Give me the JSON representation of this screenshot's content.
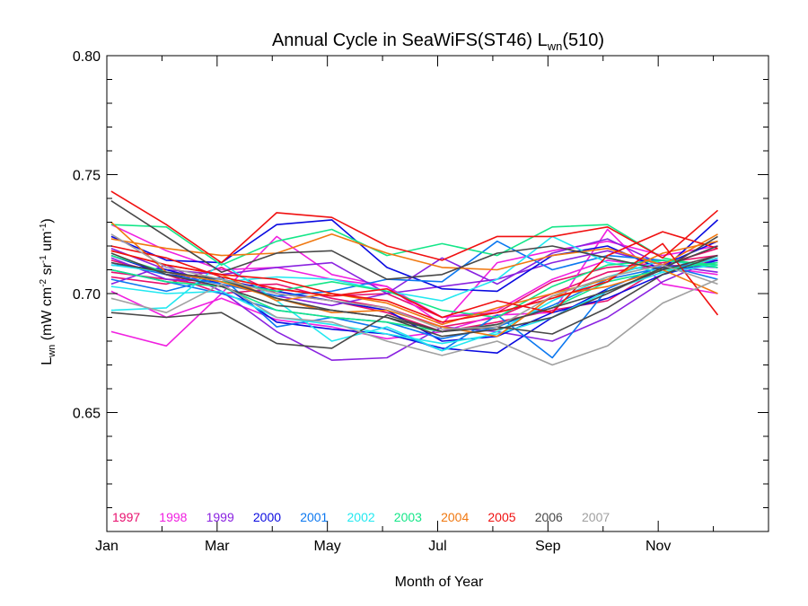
{
  "chart_data": {
    "type": "line",
    "title": "Annual Cycle in SeaWiFS(ST46) L",
    "title_sub": "wn",
    "title_tail": "(510)",
    "ylabel_main": "L",
    "ylabel_sub": "wn",
    "ylabel_unit_a": " (mW cm",
    "ylabel_unit_a_sup": "-2",
    "ylabel_unit_b": " sr",
    "ylabel_unit_b_sup": "-1",
    "ylabel_unit_c": " um",
    "ylabel_unit_c_sup": "-1",
    "ylabel_unit_d": ")",
    "xlabel": "Month of Year",
    "xlim": [
      1,
      13
    ],
    "ylim": [
      0.6,
      0.8
    ],
    "y_major_ticks": [
      0.65,
      0.7,
      0.75,
      0.8
    ],
    "y_tick_labels": [
      "0.65",
      "0.70",
      "0.75",
      "0.80"
    ],
    "x_tick_positions": [
      1,
      3,
      5,
      7,
      9,
      11
    ],
    "x_tick_labels": [
      "Jan",
      "Mar",
      "May",
      "Jul",
      "Sep",
      "Nov"
    ],
    "x": [
      1.08,
      2.08,
      3.08,
      4.08,
      5.08,
      6.08,
      7.08,
      8.08,
      9.08,
      10.08,
      11.08,
      12.08
    ],
    "legend_position": "bottom-left",
    "series": [
      {
        "name": "1997",
        "color": "#e8106e",
        "lines": [
          [
            0.707,
            0.704,
            0.711,
            0.7,
            0.697,
            0.692,
            0.684,
            0.688,
            0.693,
            0.697,
            0.711,
            0.714
          ],
          [
            0.714,
            0.708,
            0.7,
            0.702,
            0.699,
            0.7,
            0.69,
            0.692,
            0.705,
            0.711,
            0.713,
            0.716
          ],
          [
            0.709,
            0.706,
            0.703,
            0.704,
            0.698,
            0.694,
            0.686,
            0.69,
            0.7,
            0.709,
            0.712,
            0.719
          ]
        ]
      },
      {
        "name": "1998",
        "color": "#f020e0",
        "lines": [
          [
            0.684,
            0.678,
            0.7,
            0.724,
            0.708,
            0.703,
            0.69,
            0.693,
            0.706,
            0.714,
            0.711,
            0.708
          ],
          [
            0.701,
            0.69,
            0.698,
            0.689,
            0.686,
            0.681,
            0.684,
            0.691,
            0.692,
            0.727,
            0.704,
            0.7
          ],
          [
            0.729,
            0.718,
            0.71,
            0.711,
            0.706,
            0.703,
            0.687,
            0.713,
            0.718,
            0.722,
            0.716,
            0.72
          ]
        ]
      },
      {
        "name": "1999",
        "color": "#8a22e0",
        "lines": [
          [
            0.719,
            0.71,
            0.708,
            0.711,
            0.713,
            0.7,
            0.715,
            0.704,
            0.717,
            0.723,
            0.712,
            0.711
          ],
          [
            0.704,
            0.712,
            0.701,
            0.684,
            0.672,
            0.673,
            0.686,
            0.684,
            0.68,
            0.69,
            0.705,
            0.715
          ],
          [
            0.715,
            0.706,
            0.705,
            0.699,
            0.695,
            0.7,
            0.703,
            0.706,
            0.713,
            0.718,
            0.712,
            0.709
          ]
        ]
      },
      {
        "name": "2000",
        "color": "#0a0ae0",
        "lines": [
          [
            0.724,
            0.714,
            0.713,
            0.729,
            0.731,
            0.711,
            0.702,
            0.701,
            0.716,
            0.72,
            0.71,
            0.731
          ],
          [
            0.712,
            0.71,
            0.704,
            0.688,
            0.685,
            0.683,
            0.677,
            0.675,
            0.69,
            0.702,
            0.712,
            0.722
          ],
          [
            0.716,
            0.708,
            0.706,
            0.701,
            0.697,
            0.693,
            0.68,
            0.682,
            0.692,
            0.698,
            0.708,
            0.714
          ]
        ]
      },
      {
        "name": "2001",
        "color": "#0c78f0",
        "lines": [
          [
            0.706,
            0.701,
            0.707,
            0.686,
            0.69,
            0.685,
            0.676,
            0.691,
            0.673,
            0.702,
            0.712,
            0.706
          ],
          [
            0.713,
            0.708,
            0.704,
            0.699,
            0.701,
            0.706,
            0.705,
            0.722,
            0.71,
            0.716,
            0.714,
            0.711
          ],
          [
            0.71,
            0.705,
            0.7,
            0.693,
            0.69,
            0.688,
            0.681,
            0.686,
            0.695,
            0.706,
            0.711,
            0.713
          ]
        ]
      },
      {
        "name": "2002",
        "color": "#22e8f0",
        "lines": [
          [
            0.693,
            0.694,
            0.713,
            0.697,
            0.68,
            0.686,
            0.676,
            0.684,
            0.697,
            0.707,
            0.714,
            0.711
          ],
          [
            0.712,
            0.709,
            0.705,
            0.707,
            0.706,
            0.701,
            0.697,
            0.706,
            0.724,
            0.713,
            0.709,
            0.715
          ],
          [
            0.703,
            0.7,
            0.701,
            0.69,
            0.687,
            0.683,
            0.679,
            0.683,
            0.69,
            0.701,
            0.709,
            0.712
          ]
        ]
      },
      {
        "name": "2003",
        "color": "#14e688",
        "lines": [
          [
            0.729,
            0.728,
            0.712,
            0.722,
            0.727,
            0.716,
            0.721,
            0.716,
            0.728,
            0.729,
            0.715,
            0.711
          ],
          [
            0.716,
            0.709,
            0.705,
            0.701,
            0.705,
            0.701,
            0.693,
            0.69,
            0.703,
            0.712,
            0.714,
            0.712
          ],
          [
            0.71,
            0.705,
            0.703,
            0.693,
            0.69,
            0.688,
            0.684,
            0.687,
            0.694,
            0.705,
            0.71,
            0.713
          ]
        ]
      },
      {
        "name": "2004",
        "color": "#f07810",
        "lines": [
          [
            0.723,
            0.719,
            0.716,
            0.717,
            0.725,
            0.717,
            0.711,
            0.71,
            0.716,
            0.719,
            0.712,
            0.725
          ],
          [
            0.718,
            0.712,
            0.708,
            0.697,
            0.7,
            0.696,
            0.687,
            0.694,
            0.7,
            0.706,
            0.717,
            0.722
          ],
          [
            0.73,
            0.709,
            0.705,
            0.698,
            0.692,
            0.693,
            0.686,
            0.682,
            0.699,
            0.703,
            0.71,
            0.7
          ]
        ]
      },
      {
        "name": "2005",
        "color": "#f01010",
        "lines": [
          [
            0.743,
            0.729,
            0.713,
            0.734,
            0.732,
            0.72,
            0.714,
            0.724,
            0.724,
            0.728,
            0.715,
            0.735
          ],
          [
            0.72,
            0.715,
            0.707,
            0.702,
            0.699,
            0.702,
            0.69,
            0.697,
            0.692,
            0.716,
            0.726,
            0.719
          ],
          [
            0.718,
            0.712,
            0.708,
            0.706,
            0.7,
            0.697,
            0.688,
            0.692,
            0.698,
            0.705,
            0.721,
            0.691
          ]
        ]
      },
      {
        "name": "2006",
        "color": "#484848",
        "lines": [
          [
            0.739,
            0.724,
            0.709,
            0.717,
            0.718,
            0.706,
            0.708,
            0.717,
            0.72,
            0.715,
            0.71,
            0.724
          ],
          [
            0.717,
            0.708,
            0.703,
            0.695,
            0.693,
            0.69,
            0.684,
            0.687,
            0.694,
            0.701,
            0.71,
            0.716
          ],
          [
            0.692,
            0.69,
            0.692,
            0.679,
            0.677,
            0.691,
            0.684,
            0.686,
            0.683,
            0.694,
            0.708,
            0.716
          ],
          [
            0.713,
            0.709,
            0.706,
            0.698,
            0.693,
            0.69,
            0.682,
            0.685,
            0.69,
            0.7,
            0.711,
            0.72
          ]
        ]
      },
      {
        "name": "2007",
        "color": "#a0a0a0",
        "lines": [
          [
            0.698,
            0.692,
            0.704,
            0.69,
            0.688,
            0.68,
            0.674,
            0.68,
            0.67,
            0.678,
            0.696,
            0.706
          ],
          [
            0.725,
            0.711,
            0.706,
            0.7,
            0.697,
            0.694,
            0.685,
            0.686,
            0.699,
            0.707,
            0.712,
            0.704
          ]
        ]
      }
    ]
  }
}
